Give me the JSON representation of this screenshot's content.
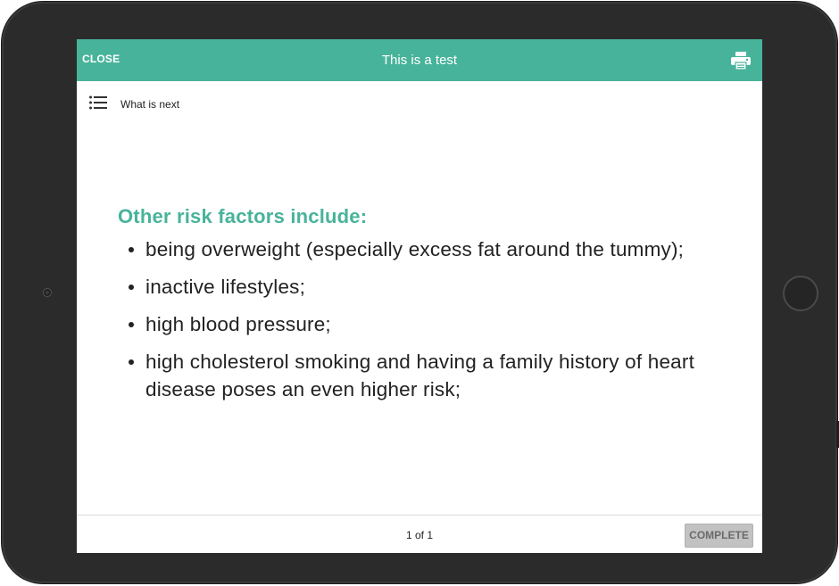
{
  "header": {
    "close_label": "CLOSE",
    "title": "This is a test",
    "print_icon": "printer-icon"
  },
  "toolbar": {
    "menu_icon": "list-icon",
    "nav_label": "What is next"
  },
  "content": {
    "heading": "Other risk factors include:",
    "bullets": [
      "being overweight (especially excess fat around the tummy);",
      "inactive lifestyles;",
      "high blood pressure;",
      "high cholesterol smoking and having a family history of heart disease poses an even higher risk;"
    ]
  },
  "footer": {
    "page_indicator": "1 of 1",
    "complete_label": "COMPLETE"
  },
  "colors": {
    "accent": "#48b39b",
    "bezel": "#2b2b2b",
    "button_disabled": "#c2c2c2"
  }
}
